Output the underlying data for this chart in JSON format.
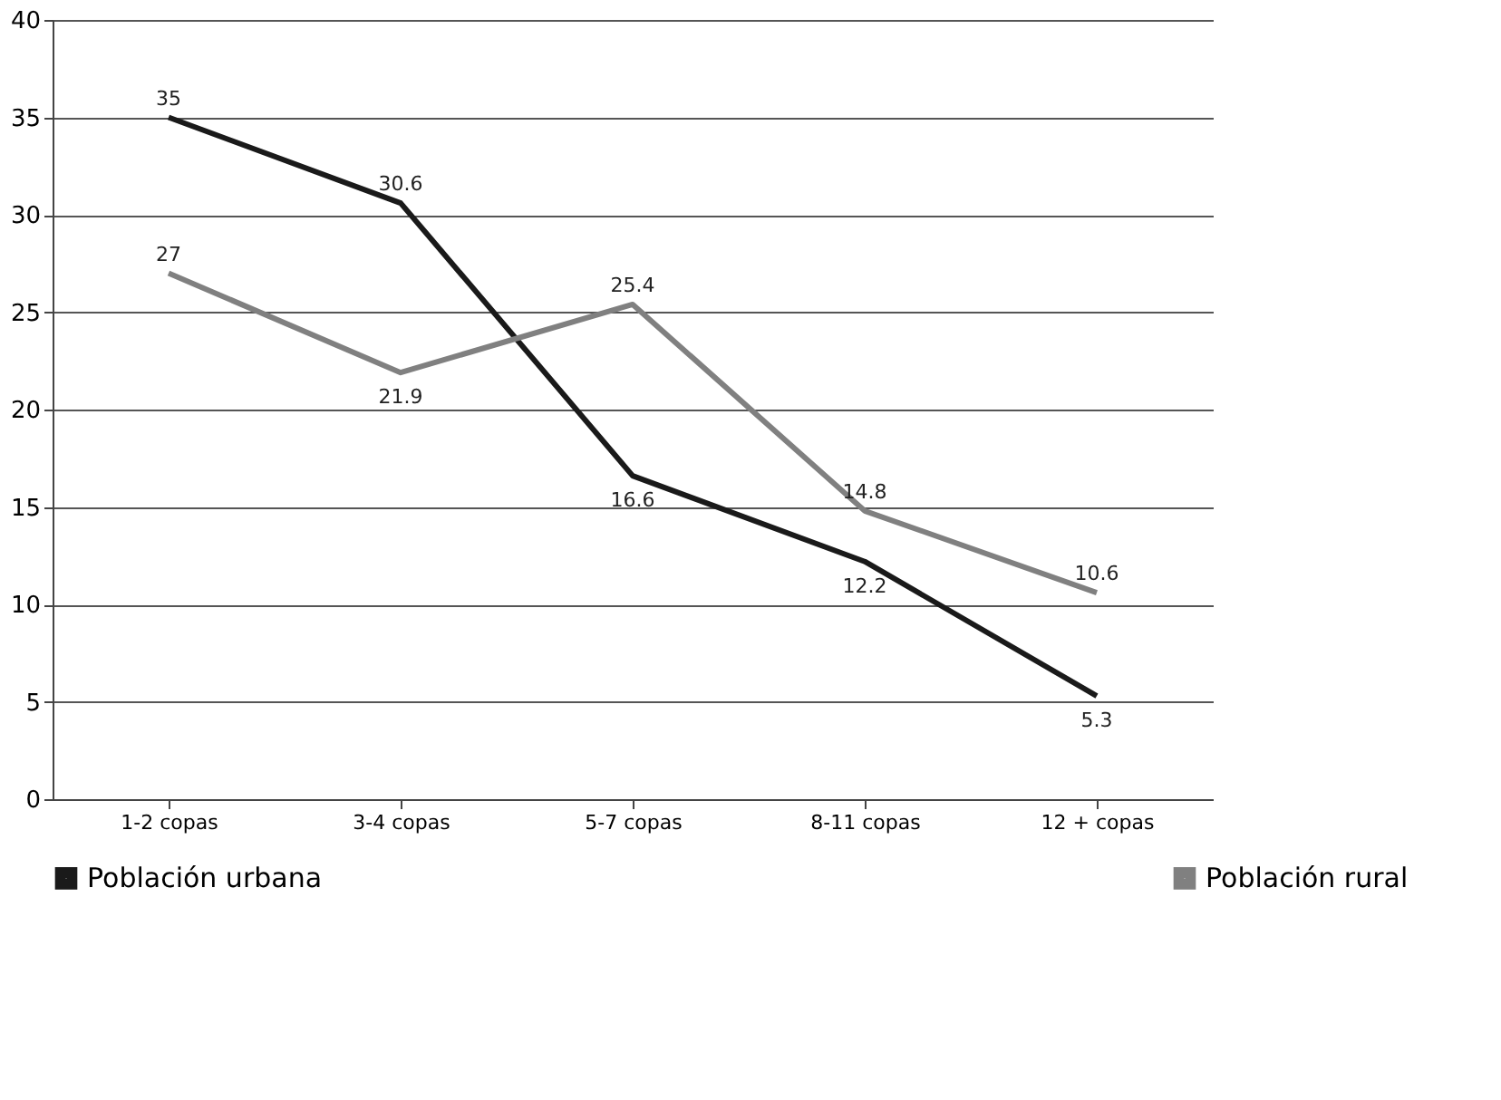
{
  "chart_data": {
    "type": "line",
    "categories": [
      "1-2 copas",
      "3-4 copas",
      "5-7 copas",
      "8-11 copas",
      "12 + copas"
    ],
    "series": [
      {
        "name": "Población urbana",
        "color": "#1a1a1a",
        "values": [
          35,
          30.6,
          16.6,
          12.2,
          5.3
        ]
      },
      {
        "name": "Población rural",
        "color": "#808080",
        "values": [
          27,
          21.9,
          25.4,
          14.8,
          10.6
        ]
      }
    ],
    "ylim": [
      0,
      40
    ],
    "yticks": [
      0,
      5,
      10,
      15,
      20,
      25,
      30,
      35,
      40
    ],
    "grid": "y",
    "legend": "bottom",
    "data_labels": true,
    "marker": "none",
    "line_style": "solid"
  }
}
